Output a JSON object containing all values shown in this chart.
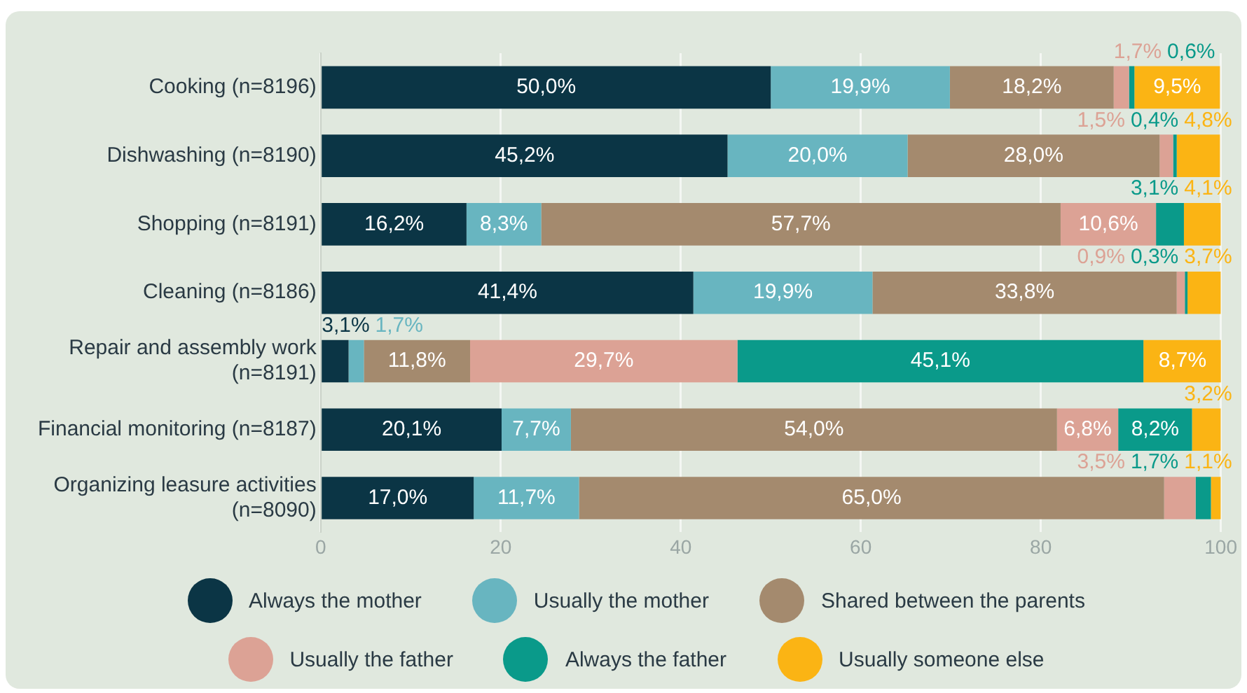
{
  "chart_data": {
    "type": "bar",
    "orientation": "horizontal",
    "stacked": true,
    "categories": [
      "Cooking (n=8196)",
      "Dishwashing (n=8190)",
      "Shopping (n=8191)",
      "Cleaning (n=8186)",
      "Repair and assembly work (n=8191)",
      "Financial monitoring (n=8187)",
      "Organizing leasure activities (n=8090)"
    ],
    "series": [
      {
        "name": "Always the mother",
        "color": "#0b3545",
        "values": [
          50.0,
          45.2,
          16.2,
          41.4,
          3.1,
          20.1,
          17.0
        ],
        "value_labels": [
          "50,0%",
          "45,2%",
          "16,2%",
          "41,4%",
          "3,1%",
          "20,1%",
          "17,0%"
        ]
      },
      {
        "name": "Usually the mother",
        "color": "#68b5c0",
        "values": [
          19.9,
          20.0,
          8.3,
          19.9,
          1.7,
          7.7,
          11.7
        ],
        "value_labels": [
          "19,9%",
          "20,0%",
          "8,3%",
          "19,9%",
          "1,7%",
          "7,7%",
          "11,7%"
        ]
      },
      {
        "name": "Shared between the parents",
        "color": "#a48a6e",
        "values": [
          18.2,
          28.0,
          57.7,
          33.8,
          11.8,
          54.0,
          65.0
        ],
        "value_labels": [
          "18,2%",
          "28,0%",
          "57,7%",
          "33,8%",
          "11,8%",
          "54,0%",
          "65,0%"
        ]
      },
      {
        "name": "Usually the father",
        "color": "#dca295",
        "values": [
          1.7,
          1.5,
          10.6,
          0.9,
          29.7,
          6.8,
          3.5
        ],
        "value_labels": [
          "1,7%",
          "1,5%",
          "10,6%",
          "0,9%",
          "29,7%",
          "6,8%",
          "3,5%"
        ]
      },
      {
        "name": "Always the father",
        "color": "#0a9a8a",
        "values": [
          0.6,
          0.4,
          3.1,
          0.3,
          45.1,
          8.2,
          1.7
        ],
        "value_labels": [
          "0,6%",
          "0,4%",
          "3,1%",
          "0,3%",
          "45,1%",
          "8,2%",
          "1,7%"
        ]
      },
      {
        "name": "Usually someone else",
        "color": "#fbb414",
        "values": [
          9.5,
          4.8,
          4.1,
          3.7,
          8.7,
          3.2,
          1.1
        ],
        "value_labels": [
          "9,5%",
          "4,8%",
          "4,1%",
          "3,7%",
          "8,7%",
          "3,2%",
          "1,1%"
        ]
      }
    ],
    "xlim": [
      0,
      100
    ],
    "xticks": [
      0,
      20,
      40,
      60,
      80,
      100
    ],
    "grid": "x",
    "legend": "bottom"
  }
}
